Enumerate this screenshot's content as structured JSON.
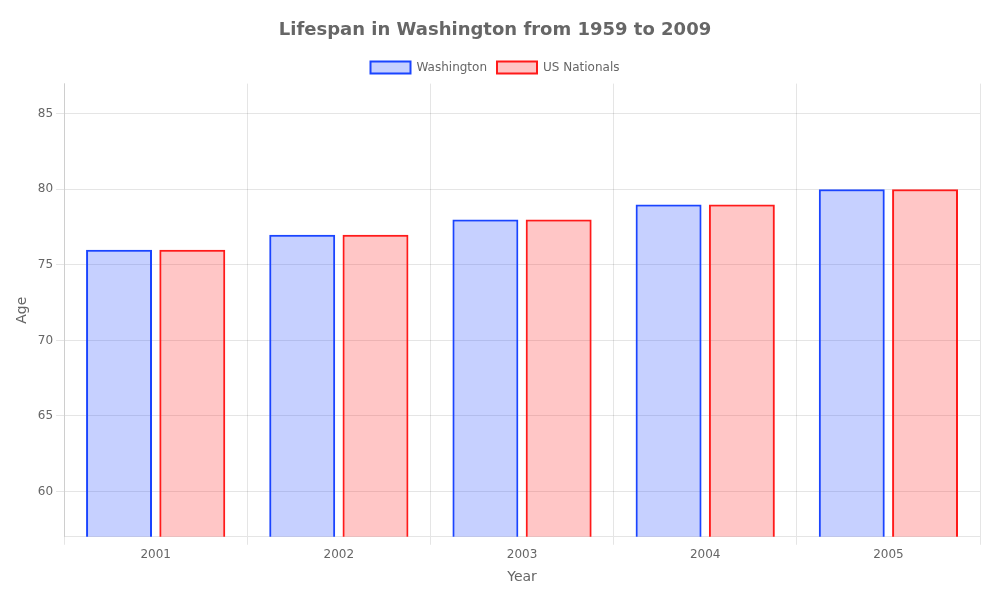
{
  "chart_data": {
    "type": "bar",
    "title": "Lifespan in Washington from 1959 to 2009",
    "xlabel": "Year",
    "ylabel": "Age",
    "categories": [
      "2001",
      "2002",
      "2003",
      "2004",
      "2005"
    ],
    "series": [
      {
        "name": "Washington",
        "color": "#1a44ff",
        "values": [
          76,
          77,
          78,
          79,
          80
        ]
      },
      {
        "name": "US Nationals",
        "color": "#ff1a1a",
        "values": [
          76,
          77,
          78,
          79,
          80
        ]
      }
    ],
    "ylim": [
      57,
      87
    ],
    "yticks": [
      60,
      65,
      70,
      75,
      80,
      85
    ],
    "grid": true,
    "legend": "top"
  }
}
